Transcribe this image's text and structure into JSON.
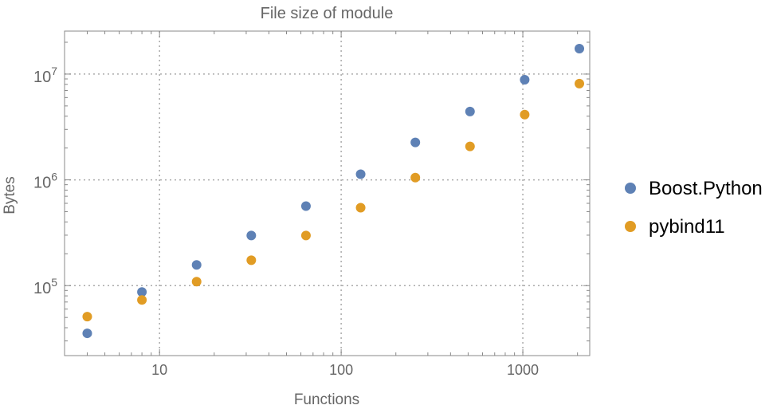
{
  "chart_data": {
    "type": "scatter",
    "title": "File size of module",
    "xlabel": "Functions",
    "ylabel": "Bytes",
    "x_scale": "log",
    "y_scale": "log",
    "xlim": [
      3.0,
      2335
    ],
    "ylim": [
      21800,
      25500000
    ],
    "grid": true,
    "legend_position": "right",
    "x_ticks": [
      10,
      100,
      1000
    ],
    "x_tick_labels": [
      "10",
      "100",
      "1000"
    ],
    "y_ticks": [
      100000,
      1000000,
      10000000
    ],
    "y_tick_labels": [
      {
        "base": "10",
        "exp": "5"
      },
      {
        "base": "10",
        "exp": "6"
      },
      {
        "base": "10",
        "exp": "7"
      }
    ],
    "x": [
      4,
      8,
      16,
      32,
      64,
      128,
      256,
      512,
      1024,
      2048
    ],
    "series": [
      {
        "name": "Boost.Python",
        "color": "#5E81B5",
        "values": [
          35400,
          87000,
          157000,
          298000,
          565000,
          1130000,
          2260000,
          4430000,
          8850000,
          17400000
        ]
      },
      {
        "name": "pybind11",
        "color": "#E19C24",
        "values": [
          50900,
          73200,
          109000,
          174000,
          298000,
          546000,
          1050000,
          2070000,
          4140000,
          8130000
        ]
      }
    ]
  }
}
